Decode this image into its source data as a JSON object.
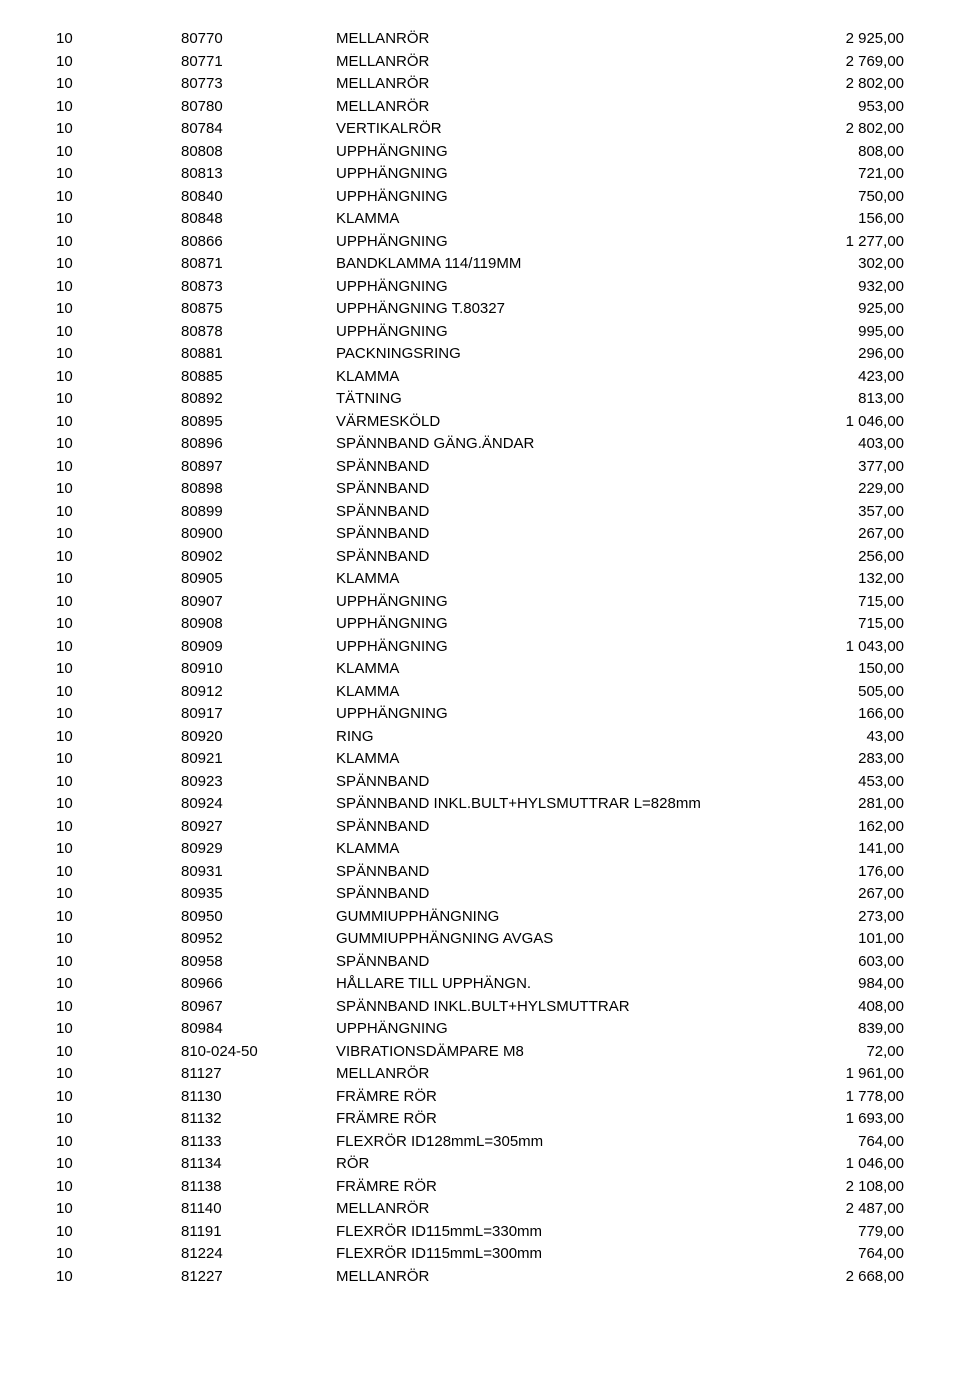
{
  "rows": [
    {
      "c1": "10",
      "c2": "80770",
      "c3": "MELLANRÖR",
      "c4": "2 925,00"
    },
    {
      "c1": "10",
      "c2": "80771",
      "c3": "MELLANRÖR",
      "c4": "2 769,00"
    },
    {
      "c1": "10",
      "c2": "80773",
      "c3": "MELLANRÖR",
      "c4": "2 802,00"
    },
    {
      "c1": "10",
      "c2": "80780",
      "c3": "MELLANRÖR",
      "c4": "953,00"
    },
    {
      "c1": "10",
      "c2": "80784",
      "c3": "VERTIKALRÖR",
      "c4": "2 802,00"
    },
    {
      "c1": "10",
      "c2": "80808",
      "c3": "UPPHÄNGNING",
      "c4": "808,00"
    },
    {
      "c1": "10",
      "c2": "80813",
      "c3": "UPPHÄNGNING",
      "c4": "721,00"
    },
    {
      "c1": "10",
      "c2": "80840",
      "c3": "UPPHÄNGNING",
      "c4": "750,00"
    },
    {
      "c1": "10",
      "c2": "80848",
      "c3": "KLAMMA",
      "c4": "156,00"
    },
    {
      "c1": "10",
      "c2": "80866",
      "c3": "UPPHÄNGNING",
      "c4": "1 277,00"
    },
    {
      "c1": "10",
      "c2": "80871",
      "c3": "BANDKLAMMA 114/119MM",
      "c4": "302,00"
    },
    {
      "c1": "10",
      "c2": "80873",
      "c3": "UPPHÄNGNING",
      "c4": "932,00"
    },
    {
      "c1": "10",
      "c2": "80875",
      "c3": "UPPHÄNGNING T.80327",
      "c4": "925,00"
    },
    {
      "c1": "10",
      "c2": "80878",
      "c3": "UPPHÄNGNING",
      "c4": "995,00"
    },
    {
      "c1": "10",
      "c2": "80881",
      "c3": "PACKNINGSRING",
      "c4": "296,00"
    },
    {
      "c1": "10",
      "c2": "80885",
      "c3": "KLAMMA",
      "c4": "423,00"
    },
    {
      "c1": "10",
      "c2": "80892",
      "c3": "TÄTNING",
      "c4": "813,00"
    },
    {
      "c1": "10",
      "c2": "80895",
      "c3": "VÄRMESKÖLD",
      "c4": "1 046,00"
    },
    {
      "c1": "10",
      "c2": "80896",
      "c3": "SPÄNNBAND GÄNG.ÄNDAR",
      "c4": "403,00"
    },
    {
      "c1": "10",
      "c2": "80897",
      "c3": "SPÄNNBAND",
      "c4": "377,00"
    },
    {
      "c1": "10",
      "c2": "80898",
      "c3": "SPÄNNBAND",
      "c4": "229,00"
    },
    {
      "c1": "10",
      "c2": "80899",
      "c3": "SPÄNNBAND",
      "c4": "357,00"
    },
    {
      "c1": "10",
      "c2": "80900",
      "c3": "SPÄNNBAND",
      "c4": "267,00"
    },
    {
      "c1": "10",
      "c2": "80902",
      "c3": "SPÄNNBAND",
      "c4": "256,00"
    },
    {
      "c1": "10",
      "c2": "80905",
      "c3": "KLAMMA",
      "c4": "132,00"
    },
    {
      "c1": "10",
      "c2": "80907",
      "c3": "UPPHÄNGNING",
      "c4": "715,00"
    },
    {
      "c1": "10",
      "c2": "80908",
      "c3": "UPPHÄNGNING",
      "c4": "715,00"
    },
    {
      "c1": "10",
      "c2": "80909",
      "c3": "UPPHÄNGNING",
      "c4": "1 043,00"
    },
    {
      "c1": "10",
      "c2": "80910",
      "c3": "KLAMMA",
      "c4": "150,00"
    },
    {
      "c1": "10",
      "c2": "80912",
      "c3": "KLAMMA",
      "c4": "505,00"
    },
    {
      "c1": "10",
      "c2": "80917",
      "c3": "UPPHÄNGNING",
      "c4": "166,00"
    },
    {
      "c1": "10",
      "c2": "80920",
      "c3": "RING",
      "c4": "43,00"
    },
    {
      "c1": "10",
      "c2": "80921",
      "c3": "KLAMMA",
      "c4": "283,00"
    },
    {
      "c1": "10",
      "c2": "80923",
      "c3": "SPÄNNBAND",
      "c4": "453,00"
    },
    {
      "c1": "10",
      "c2": "80924",
      "c3": "SPÄNNBAND INKL.BULT+HYLSMUTTRAR L=828mm",
      "c4": "281,00"
    },
    {
      "c1": "10",
      "c2": "80927",
      "c3": "SPÄNNBAND",
      "c4": "162,00"
    },
    {
      "c1": "10",
      "c2": "80929",
      "c3": "KLAMMA",
      "c4": "141,00"
    },
    {
      "c1": "10",
      "c2": "80931",
      "c3": "SPÄNNBAND",
      "c4": "176,00"
    },
    {
      "c1": "10",
      "c2": "80935",
      "c3": "SPÄNNBAND",
      "c4": "267,00"
    },
    {
      "c1": "10",
      "c2": "80950",
      "c3": "GUMMIUPPHÄNGNING",
      "c4": "273,00"
    },
    {
      "c1": "10",
      "c2": "80952",
      "c3": "GUMMIUPPHÄNGNING AVGAS",
      "c4": "101,00"
    },
    {
      "c1": "10",
      "c2": "80958",
      "c3": "SPÄNNBAND",
      "c4": "603,00"
    },
    {
      "c1": "10",
      "c2": "80966",
      "c3": "HÅLLARE TILL UPPHÄNGN.",
      "c4": "984,00"
    },
    {
      "c1": "10",
      "c2": "80967",
      "c3": "SPÄNNBAND INKL.BULT+HYLSMUTTRAR",
      "c4": "408,00"
    },
    {
      "c1": "10",
      "c2": "80984",
      "c3": "UPPHÄNGNING",
      "c4": "839,00"
    },
    {
      "c1": "10",
      "c2": "810-024-50",
      "c3": "VIBRATIONSDÄMPARE M8",
      "c4": "72,00"
    },
    {
      "c1": "10",
      "c2": "81127",
      "c3": "MELLANRÖR",
      "c4": "1 961,00"
    },
    {
      "c1": "10",
      "c2": "81130",
      "c3": "FRÄMRE RÖR",
      "c4": "1 778,00"
    },
    {
      "c1": "10",
      "c2": "81132",
      "c3": "FRÄMRE RÖR",
      "c4": "1 693,00"
    },
    {
      "c1": "10",
      "c2": "81133",
      "c3": "FLEXRÖR ID128mmL=305mm",
      "c4": "764,00"
    },
    {
      "c1": "10",
      "c2": "81134",
      "c3": "RÖR",
      "c4": "1 046,00"
    },
    {
      "c1": "10",
      "c2": "81138",
      "c3": "FRÄMRE RÖR",
      "c4": "2 108,00"
    },
    {
      "c1": "10",
      "c2": "81140",
      "c3": "MELLANRÖR",
      "c4": "2 487,00"
    },
    {
      "c1": "10",
      "c2": "81191",
      "c3": "FLEXRÖR ID115mmL=330mm",
      "c4": "779,00"
    },
    {
      "c1": "10",
      "c2": "81224",
      "c3": "FLEXRÖR ID115mmL=300mm",
      "c4": "764,00"
    },
    {
      "c1": "10",
      "c2": "81227",
      "c3": "MELLANRÖR",
      "c4": "2 668,00"
    }
  ]
}
